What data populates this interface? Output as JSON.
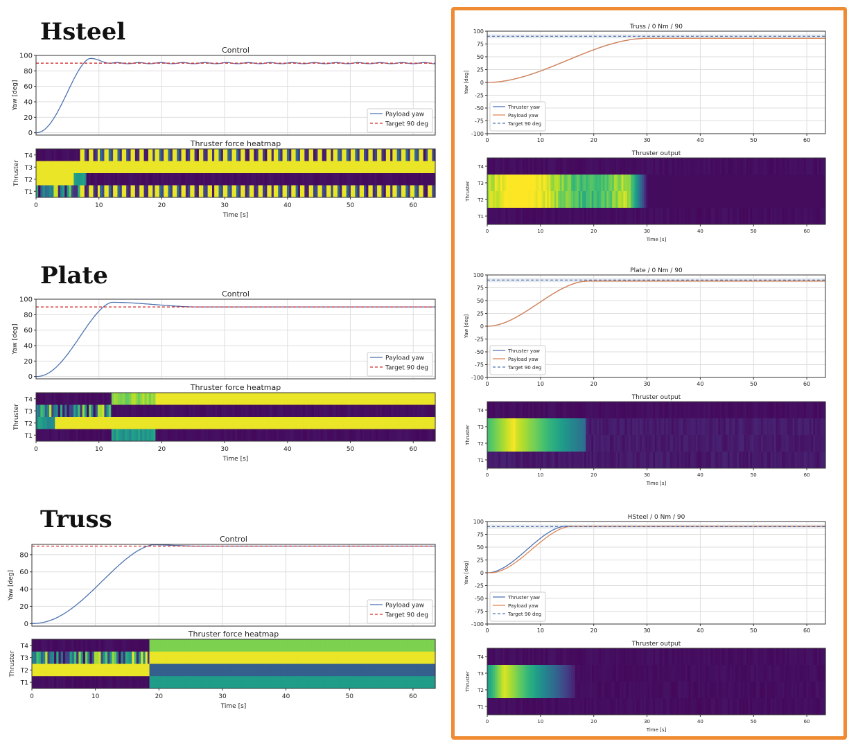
{
  "section_titles": [
    "Hsteel",
    "Plate",
    "Truss"
  ],
  "highlight_color": "#ee8b33",
  "colors": {
    "blue": "#4c72b0",
    "orange": "#dd8452",
    "red": "#d62728",
    "grid": "#dddddd"
  },
  "chart_data": [
    {
      "id": "hsteel_control",
      "type": "line",
      "title": "Control",
      "xlabel": "",
      "ylabel": "Yaw [deg]",
      "xlim": [
        0,
        63.5
      ],
      "ylim": [
        -3,
        100
      ],
      "xticks": [],
      "yticks": [
        0,
        20,
        40,
        60,
        80,
        100
      ],
      "grid": true,
      "legend": "bottom-right",
      "series": [
        {
          "name": "Payload yaw",
          "color": "#4c72b0",
          "style": "solid",
          "kind": "yaw",
          "params": {
            "shape": "overshoot",
            "tr": 8.5,
            "peak": 96,
            "t_settle": 12,
            "osc": 1.3
          }
        },
        {
          "name": "Target 90 deg",
          "color": "#d62728",
          "style": "dashed",
          "kind": "const",
          "value": 90
        }
      ]
    },
    {
      "id": "hsteel_heat",
      "type": "heatmap",
      "title": "Thruster force heatmap",
      "xlabel": "Time [s]",
      "ylabel": "Thruster",
      "xlim": [
        0,
        63.5
      ],
      "xticks": [
        0,
        10,
        20,
        30,
        40,
        50,
        60
      ],
      "rows": [
        "T4",
        "T3",
        "T2",
        "T1"
      ],
      "rows_data": [
        [
          {
            "t0": 0,
            "t1": 7,
            "p": "dark"
          },
          {
            "t0": 7,
            "t1": 63.5,
            "p": "stripes",
            "period": 1.35
          }
        ],
        [
          {
            "t0": 0,
            "t1": 63.5,
            "p": "yellow"
          }
        ],
        [
          {
            "t0": 0,
            "t1": 6,
            "p": "yellow"
          },
          {
            "t0": 6,
            "t1": 8,
            "p": "teal"
          },
          {
            "t0": 8,
            "t1": 63.5,
            "p": "dark"
          }
        ],
        [
          {
            "t0": 0,
            "t1": 7,
            "p": "mixed"
          },
          {
            "t0": 7,
            "t1": 63.5,
            "p": "stripes",
            "period": 1.35
          }
        ]
      ]
    },
    {
      "id": "plate_control",
      "type": "line",
      "title": "Control",
      "xlabel": "",
      "ylabel": "Yaw [deg]",
      "xlim": [
        0,
        63.5
      ],
      "ylim": [
        -3,
        100
      ],
      "xticks": [],
      "yticks": [
        0,
        20,
        40,
        60,
        80,
        100
      ],
      "grid": true,
      "legend": "bottom-right",
      "series": [
        {
          "name": "Payload yaw",
          "color": "#4c72b0",
          "style": "solid",
          "kind": "yaw",
          "params": {
            "shape": "overshoot",
            "tr": 12,
            "peak": 96,
            "t_settle": 26,
            "osc": 0
          }
        },
        {
          "name": "Target 90 deg",
          "color": "#d62728",
          "style": "dashed",
          "kind": "const",
          "value": 90
        }
      ]
    },
    {
      "id": "plate_heat",
      "type": "heatmap",
      "title": "Thruster force heatmap",
      "xlabel": "Time [s]",
      "ylabel": "Thruster",
      "xlim": [
        0,
        63.5
      ],
      "xticks": [
        0,
        10,
        20,
        30,
        40,
        50,
        60
      ],
      "rows": [
        "T4",
        "T3",
        "T2",
        "T1"
      ],
      "rows_data": [
        [
          {
            "t0": 0,
            "t1": 12,
            "p": "dark"
          },
          {
            "t0": 12,
            "t1": 19,
            "p": "green"
          },
          {
            "t0": 19,
            "t1": 63.5,
            "p": "yellow"
          }
        ],
        [
          {
            "t0": 0,
            "t1": 12,
            "p": "mixed"
          },
          {
            "t0": 12,
            "t1": 63.5,
            "p": "dark"
          }
        ],
        [
          {
            "t0": 0,
            "t1": 3,
            "p": "teal"
          },
          {
            "t0": 3,
            "t1": 63.5,
            "p": "yellow"
          }
        ],
        [
          {
            "t0": 0,
            "t1": 12,
            "p": "dark"
          },
          {
            "t0": 12,
            "t1": 19,
            "p": "teal"
          },
          {
            "t0": 19,
            "t1": 63.5,
            "p": "dark"
          }
        ]
      ]
    },
    {
      "id": "truss_control",
      "type": "line",
      "title": "Control",
      "xlabel": "",
      "ylabel": "Yaw [deg]",
      "xlim": [
        0,
        63.5
      ],
      "ylim": [
        -3,
        92
      ],
      "xticks": [],
      "yticks": [
        0,
        20,
        40,
        60,
        80
      ],
      "grid": true,
      "legend": "bottom-right",
      "series": [
        {
          "name": "Payload yaw",
          "color": "#4c72b0",
          "style": "solid",
          "kind": "yaw",
          "params": {
            "shape": "overshoot",
            "tr": 19,
            "peak": 91.5,
            "t_settle": 26,
            "osc": 0
          }
        },
        {
          "name": "Target 90 deg",
          "color": "#d62728",
          "style": "dashed",
          "kind": "const",
          "value": 90
        }
      ]
    },
    {
      "id": "truss_heat",
      "type": "heatmap",
      "title": "Thruster force heatmap",
      "xlabel": "Time [s]",
      "ylabel": "Thruster",
      "xlim": [
        0,
        63.5
      ],
      "xticks": [
        0,
        10,
        20,
        30,
        40,
        50,
        60
      ],
      "rows": [
        "T4",
        "T3",
        "T2",
        "T1"
      ],
      "rows_data": [
        [
          {
            "t0": 0,
            "t1": 18.5,
            "p": "dark"
          },
          {
            "t0": 18.5,
            "t1": 63.5,
            "p": "lightgreen"
          }
        ],
        [
          {
            "t0": 0,
            "t1": 18.5,
            "p": "mixed"
          },
          {
            "t0": 18.5,
            "t1": 63.5,
            "p": "yellow"
          }
        ],
        [
          {
            "t0": 0,
            "t1": 18.5,
            "p": "yellow"
          },
          {
            "t0": 18.5,
            "t1": 63.5,
            "p": "blue"
          }
        ],
        [
          {
            "t0": 0,
            "t1": 18.5,
            "p": "dark"
          },
          {
            "t0": 18.5,
            "t1": 63.5,
            "p": "tealgreen"
          }
        ]
      ]
    },
    {
      "id": "truss_sim_control",
      "type": "line",
      "title": "Truss / 0 Nm / 90",
      "xlabel": "",
      "ylabel": "Yaw [deg]",
      "xlim": [
        0,
        63.5
      ],
      "ylim": [
        -100,
        100
      ],
      "xticks": [
        0,
        10,
        20,
        30,
        40,
        50,
        60
      ],
      "yticks": [
        -100,
        -75,
        -50,
        -25,
        0,
        25,
        50,
        75,
        100
      ],
      "grid": true,
      "legend": "bottom-left",
      "band": [
        86,
        94
      ],
      "series": [
        {
          "name": "Thruster yaw",
          "color": "#4c72b0",
          "style": "solid",
          "kind": "yaw",
          "params": {
            "shape": "smooth",
            "tr": 30,
            "final": 86
          }
        },
        {
          "name": "Payload yaw",
          "color": "#dd8452",
          "style": "solid",
          "kind": "yaw",
          "params": {
            "shape": "smooth",
            "tr": 30,
            "final": 86
          }
        },
        {
          "name": "Target 90 deg",
          "color": "#4c72b0",
          "style": "dashed",
          "kind": "const",
          "value": 90
        }
      ]
    },
    {
      "id": "truss_sim_heat",
      "type": "heatmap",
      "title": "Thruster output",
      "xlabel": "Time [s]",
      "ylabel": "Thruster",
      "xlim": [
        0,
        63.5
      ],
      "xticks": [
        0,
        10,
        20,
        30,
        40,
        50,
        60
      ],
      "rows": [
        "T4",
        "T3",
        "T2",
        "T1"
      ],
      "rowfrac": [
        0.25,
        0.25,
        0.25,
        0.25
      ],
      "rows_data": [
        [
          {
            "t0": 0,
            "t1": 63.5,
            "p": "dark"
          }
        ],
        [
          {
            "t0": 0,
            "t1": 63.5,
            "p": "sim1"
          }
        ],
        [
          {
            "t0": 0,
            "t1": 63.5,
            "p": "sim1"
          }
        ],
        [
          {
            "t0": 0,
            "t1": 63.5,
            "p": "dark"
          }
        ]
      ]
    },
    {
      "id": "plate_sim_control",
      "type": "line",
      "title": "Plate / 0 Nm / 90",
      "xlabel": "",
      "ylabel": "Yaw [deg]",
      "xlim": [
        0,
        63.5
      ],
      "ylim": [
        -100,
        100
      ],
      "xticks": [
        0,
        10,
        20,
        30,
        40,
        50,
        60
      ],
      "yticks": [
        -100,
        -75,
        -50,
        -25,
        0,
        25,
        50,
        75,
        100
      ],
      "grid": true,
      "legend": "bottom-left",
      "band": [
        86,
        94
      ],
      "series": [
        {
          "name": "Thruster yaw",
          "color": "#4c72b0",
          "style": "solid",
          "kind": "yaw",
          "params": {
            "shape": "smooth",
            "tr": 19,
            "final": 88
          }
        },
        {
          "name": "Payload yaw",
          "color": "#dd8452",
          "style": "solid",
          "kind": "yaw",
          "params": {
            "shape": "smooth",
            "tr": 19,
            "final": 88
          }
        },
        {
          "name": "Target 90 deg",
          "color": "#4c72b0",
          "style": "dashed",
          "kind": "const",
          "value": 90
        }
      ]
    },
    {
      "id": "plate_sim_heat",
      "type": "heatmap",
      "title": "Thruster output",
      "xlabel": "Time [s]",
      "ylabel": "Thruster",
      "xlim": [
        0,
        63.5
      ],
      "xticks": [
        0,
        10,
        20,
        30,
        40,
        50,
        60
      ],
      "rows": [
        "T4",
        "T3",
        "T2",
        "T1"
      ],
      "rows_data": [
        [
          {
            "t0": 0,
            "t1": 63.5,
            "p": "dark"
          }
        ],
        [
          {
            "t0": 0,
            "t1": 18.5,
            "p": "sim2"
          },
          {
            "t0": 18.5,
            "t1": 63.5,
            "p": "darkstripe"
          }
        ],
        [
          {
            "t0": 0,
            "t1": 18.5,
            "p": "sim2"
          },
          {
            "t0": 18.5,
            "t1": 63.5,
            "p": "darkstripe"
          }
        ],
        [
          {
            "t0": 0,
            "t1": 63.5,
            "p": "darkstripe"
          }
        ]
      ]
    },
    {
      "id": "hsteel_sim_control",
      "type": "line",
      "title": "HSteel / 0 Nm / 90",
      "xlabel": "",
      "ylabel": "Yaw [deg]",
      "xlim": [
        0,
        63.5
      ],
      "ylim": [
        -100,
        100
      ],
      "xticks": [
        0,
        10,
        20,
        30,
        40,
        50,
        60
      ],
      "yticks": [
        -100,
        -75,
        -50,
        -25,
        0,
        25,
        50,
        75,
        100
      ],
      "grid": true,
      "legend": "bottom-left",
      "band": [
        86,
        94
      ],
      "series": [
        {
          "name": "Thruster yaw",
          "color": "#4c72b0",
          "style": "solid",
          "kind": "yaw",
          "params": {
            "shape": "smooth",
            "tr": 15,
            "final": 91
          }
        },
        {
          "name": "Payload yaw",
          "color": "#dd8452",
          "style": "solid",
          "kind": "yaw",
          "params": {
            "shape": "smooth",
            "tr": 15.5,
            "final": 91,
            "delay": 0.6
          }
        },
        {
          "name": "Target 90 deg",
          "color": "#4c72b0",
          "style": "dashed",
          "kind": "const",
          "value": 90
        }
      ]
    },
    {
      "id": "hsteel_sim_heat",
      "type": "heatmap",
      "title": "Thruster output",
      "xlabel": "Time [s]",
      "ylabel": "Thruster",
      "xlim": [
        0,
        63.5
      ],
      "xticks": [
        0,
        10,
        20,
        30,
        40,
        50,
        60
      ],
      "rows": [
        "T4",
        "T3",
        "T2",
        "T1"
      ],
      "rows_data": [
        [
          {
            "t0": 0,
            "t1": 63.5,
            "p": "dark"
          }
        ],
        [
          {
            "t0": 0,
            "t1": 16.5,
            "p": "sim3"
          },
          {
            "t0": 16.5,
            "t1": 63.5,
            "p": "dark"
          }
        ],
        [
          {
            "t0": 0,
            "t1": 16.5,
            "p": "sim3"
          },
          {
            "t0": 16.5,
            "t1": 63.5,
            "p": "dark"
          }
        ],
        [
          {
            "t0": 0,
            "t1": 63.5,
            "p": "dark"
          }
        ]
      ]
    }
  ]
}
